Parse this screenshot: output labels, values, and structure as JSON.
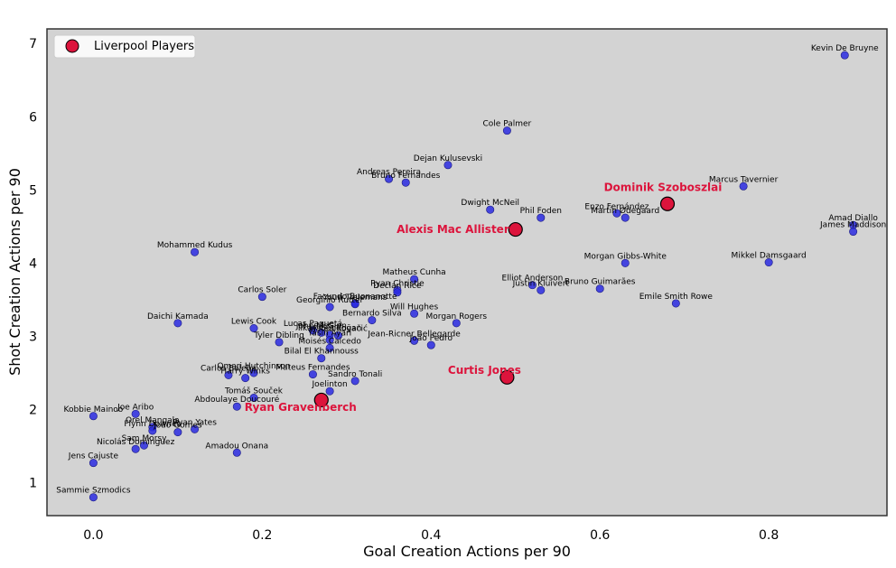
{
  "chart_data": {
    "type": "scatter",
    "title": "",
    "xlabel": "Goal Creation Actions per 90",
    "ylabel": "Shot Creation Actions per 90",
    "xlim": [
      -0.055,
      0.94
    ],
    "ylim": [
      0.55,
      7.2
    ],
    "x_ticks": [
      0.0,
      0.2,
      0.4,
      0.6,
      0.8
    ],
    "x_tick_labels": [
      "0.0",
      "0.2",
      "0.4",
      "0.6",
      "0.8"
    ],
    "y_ticks": [
      1,
      2,
      3,
      4,
      5,
      6,
      7
    ],
    "y_tick_labels": [
      "1",
      "2",
      "3",
      "4",
      "5",
      "6",
      "7"
    ],
    "grid": false,
    "background_color": "#d3d3d3",
    "legend": {
      "placement": "top-left",
      "entries": [
        "Liverpool Players"
      ]
    },
    "series": [
      {
        "name": "Liverpool Players",
        "color": "#dc143c",
        "points": [
          {
            "label": "Dominik Szoboszlai",
            "x": 0.68,
            "y": 4.81
          },
          {
            "label": "Alexis Mac Allister",
            "x": 0.5,
            "y": 4.46
          },
          {
            "label": "Curtis Jones",
            "x": 0.49,
            "y": 2.44
          },
          {
            "label": "Ryan Gravenberch",
            "x": 0.27,
            "y": 2.13
          }
        ]
      },
      {
        "color": "#2a2ae0",
        "points": [
          {
            "label": "Kevin De Bruyne",
            "x": 0.89,
            "y": 6.84
          },
          {
            "label": "Cole Palmer",
            "x": 0.49,
            "y": 5.81
          },
          {
            "label": "Dejan Kulusevski",
            "x": 0.42,
            "y": 5.34
          },
          {
            "label": "Andreas Pereira",
            "x": 0.35,
            "y": 5.15
          },
          {
            "label": "Bruno Fernandes",
            "x": 0.37,
            "y": 5.1
          },
          {
            "label": "Marcus Tavernier",
            "x": 0.77,
            "y": 5.05
          },
          {
            "label": "Dwight McNeil",
            "x": 0.47,
            "y": 4.73
          },
          {
            "label": "Enzo Fernández",
            "x": 0.62,
            "y": 4.68
          },
          {
            "label": "Phil Foden",
            "x": 0.53,
            "y": 4.62
          },
          {
            "label": "Martin Ødegaard",
            "x": 0.63,
            "y": 4.62
          },
          {
            "label": "Amad Diallo",
            "x": 0.9,
            "y": 4.52
          },
          {
            "label": "James Maddison",
            "x": 0.9,
            "y": 4.43
          },
          {
            "label": "Mohammed Kudus",
            "x": 0.12,
            "y": 4.15
          },
          {
            "label": "Mikkel Damsgaard",
            "x": 0.8,
            "y": 4.01
          },
          {
            "label": "Morgan Gibbs-White",
            "x": 0.63,
            "y": 4.0
          },
          {
            "label": "Matheus Cunha",
            "x": 0.38,
            "y": 3.78
          },
          {
            "label": "Elliot Anderson",
            "x": 0.52,
            "y": 3.7
          },
          {
            "label": "Bruno Guimarães",
            "x": 0.6,
            "y": 3.65
          },
          {
            "label": "Justin Kluivert",
            "x": 0.53,
            "y": 3.63
          },
          {
            "label": "Ryan Christie",
            "x": 0.36,
            "y": 3.63
          },
          {
            "label": "Declan Rice",
            "x": 0.36,
            "y": 3.6
          },
          {
            "label": "Carlos Soler",
            "x": 0.2,
            "y": 3.54
          },
          {
            "label": "Facundo Buonanotte",
            "x": 0.31,
            "y": 3.45
          },
          {
            "label": "Youri Tielemans",
            "x": 0.31,
            "y": 3.44
          },
          {
            "label": "Emile Smith Rowe",
            "x": 0.69,
            "y": 3.45
          },
          {
            "label": "Will Hughes",
            "x": 0.38,
            "y": 3.31
          },
          {
            "label": "Georginio Rutter",
            "x": 0.28,
            "y": 3.4
          },
          {
            "label": "Bernardo Silva",
            "x": 0.33,
            "y": 3.22
          },
          {
            "label": "Daichi Kamada",
            "x": 0.1,
            "y": 3.18
          },
          {
            "label": "Morgan Rogers",
            "x": 0.43,
            "y": 3.18
          },
          {
            "label": "Lewis Cook",
            "x": 0.19,
            "y": 3.11
          },
          {
            "label": "Lucas Paquetá",
            "x": 0.26,
            "y": 3.08
          },
          {
            "label": "John McGinn",
            "x": 0.27,
            "y": 3.05
          },
          {
            "label": "İlkay Gündoğan",
            "x": 0.28,
            "y": 3.02
          },
          {
            "label": "Mateo Kovačić",
            "x": 0.29,
            "y": 3.01
          },
          {
            "label": "Jean-Ricner Bellegarde",
            "x": 0.38,
            "y": 2.94
          },
          {
            "label": "Yasin Ayari",
            "x": 0.28,
            "y": 2.95
          },
          {
            "label": "Tyler Dibling",
            "x": 0.22,
            "y": 2.92
          },
          {
            "label": "João Pedro",
            "x": 0.4,
            "y": 2.88
          },
          {
            "label": "Moisés Caicedo",
            "x": 0.28,
            "y": 2.84
          },
          {
            "label": "Bilal El Khannouss",
            "x": 0.27,
            "y": 2.7
          },
          {
            "label": "Omari Hutchinson",
            "x": 0.19,
            "y": 2.5
          },
          {
            "label": "Mateus Fernandes",
            "x": 0.26,
            "y": 2.48
          },
          {
            "label": "Carlos Baleba",
            "x": 0.16,
            "y": 2.47
          },
          {
            "label": "Harry Winks",
            "x": 0.18,
            "y": 2.43
          },
          {
            "label": "Sandro Tonali",
            "x": 0.31,
            "y": 2.39
          },
          {
            "label": "Joelinton",
            "x": 0.28,
            "y": 2.25
          },
          {
            "label": "Tomáš Souček",
            "x": 0.19,
            "y": 2.16
          },
          {
            "label": "Abdoulaye Doucouré",
            "x": 0.17,
            "y": 2.04
          },
          {
            "label": "Joe Aribo",
            "x": 0.05,
            "y": 1.94
          },
          {
            "label": "Kobbie Mainoo",
            "x": 0.0,
            "y": 1.91
          },
          {
            "label": "Orel Mangala",
            "x": 0.07,
            "y": 1.76
          },
          {
            "label": "Ryan Yates",
            "x": 0.12,
            "y": 1.73
          },
          {
            "label": "Flynn Downes",
            "x": 0.07,
            "y": 1.71
          },
          {
            "label": "João Gomes",
            "x": 0.1,
            "y": 1.69
          },
          {
            "label": "Sam Morsy",
            "x": 0.06,
            "y": 1.51
          },
          {
            "label": "Nicolás Domínguez",
            "x": 0.05,
            "y": 1.46
          },
          {
            "label": "Amadou Onana",
            "x": 0.17,
            "y": 1.41
          },
          {
            "label": "Jens Cajuste",
            "x": 0.0,
            "y": 1.27
          },
          {
            "label": "Sammie Szmodics",
            "x": 0.0,
            "y": 0.8
          }
        ]
      }
    ]
  }
}
